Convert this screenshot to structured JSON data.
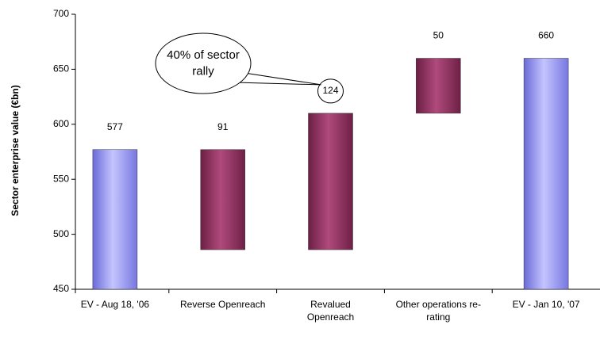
{
  "chart_data": {
    "type": "waterfall",
    "y_label": "Sector enterprise value (€bn)",
    "categories": [
      "EV - Aug 18, '06",
      "Reverse Openreach",
      "Revalued\nOpenreach",
      "Other operations re-\nrating",
      "EV - Jan 10, '07"
    ],
    "values": [
      577,
      -91,
      124,
      50,
      660
    ],
    "value_labels": [
      "577",
      "91",
      "124",
      "50",
      "660"
    ],
    "measure": [
      "absolute",
      "relative",
      "relative",
      "relative",
      "total"
    ],
    "colors": [
      "#9999ff",
      "#993366",
      "#993366",
      "#993366",
      "#9999ff"
    ],
    "ylim": [
      450,
      700
    ],
    "yticks": [
      450,
      500,
      550,
      600,
      650,
      700
    ],
    "grid": false,
    "annotation": {
      "text": "40% of sector\nrally",
      "target": 2
    }
  }
}
